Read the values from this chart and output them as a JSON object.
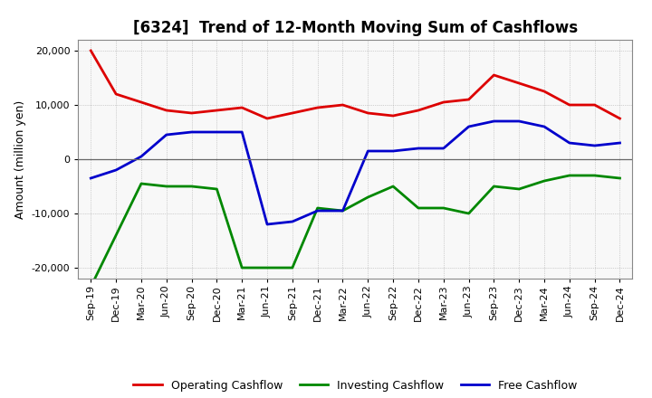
{
  "title": "[6324]  Trend of 12-Month Moving Sum of Cashflows",
  "ylabel": "Amount (million yen)",
  "background_color": "#ffffff",
  "plot_bg_color": "#f8f8f8",
  "grid_color": "#aaaaaa",
  "x_labels": [
    "Sep-19",
    "Dec-19",
    "Mar-20",
    "Jun-20",
    "Sep-20",
    "Dec-20",
    "Mar-21",
    "Jun-21",
    "Sep-21",
    "Dec-21",
    "Mar-22",
    "Jun-22",
    "Sep-22",
    "Dec-22",
    "Mar-23",
    "Jun-23",
    "Sep-23",
    "Dec-23",
    "Mar-24",
    "Jun-24",
    "Sep-24",
    "Dec-24"
  ],
  "operating_cashflow": [
    20000,
    12000,
    10500,
    9000,
    8500,
    9000,
    9500,
    7500,
    8500,
    9500,
    10000,
    8500,
    8000,
    9000,
    10500,
    11000,
    15500,
    14000,
    12500,
    10000,
    10000,
    7500
  ],
  "investing_cashflow": [
    -23500,
    -14000,
    -4500,
    -5000,
    -5000,
    -5500,
    -20000,
    -20000,
    -20000,
    -9000,
    -9500,
    -7000,
    -5000,
    -9000,
    -9000,
    -10000,
    -5000,
    -5500,
    -4000,
    -3000,
    -3000,
    -3500
  ],
  "free_cashflow": [
    -3500,
    -2000,
    500,
    4500,
    5000,
    5000,
    5000,
    -12000,
    -11500,
    -9500,
    -9500,
    1500,
    1500,
    2000,
    2000,
    6000,
    7000,
    7000,
    6000,
    3000,
    2500,
    3000
  ],
  "ylim": [
    -22000,
    22000
  ],
  "yticks": [
    -20000,
    -10000,
    0,
    10000,
    20000
  ],
  "line_colors": {
    "operating": "#dd0000",
    "investing": "#008800",
    "free": "#0000cc"
  },
  "line_width": 2.0
}
